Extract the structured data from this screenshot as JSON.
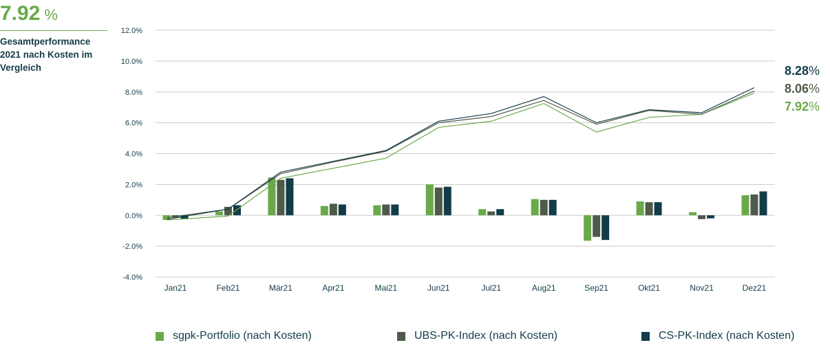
{
  "headline": {
    "value": "7.92",
    "unit": "%",
    "subtitle_lines": [
      "Gesamtperformance",
      "2021 nach Kosten im",
      "Vergleich"
    ]
  },
  "end_labels": [
    {
      "value": "8.28",
      "unit": "%",
      "color": "#123c48"
    },
    {
      "value": "8.06",
      "unit": "%",
      "color": "#4e5a4a"
    },
    {
      "value": "7.92",
      "unit": "%",
      "color": "#6aa94a"
    }
  ],
  "colors": {
    "sgpk": "#6aa94a",
    "ubs": "#4e5a4a",
    "cs": "#123c48",
    "grid": "#c8cbc8",
    "axis_text": "#123c48"
  },
  "chart_data": {
    "type": "bar",
    "categories": [
      "Jan21",
      "Feb21",
      "Mär21",
      "Apr21",
      "Mai21",
      "Jun21",
      "Jul21",
      "Aug21",
      "Sep21",
      "Okt21",
      "Nov21",
      "Dez21"
    ],
    "ylim": [
      -4.0,
      12.0
    ],
    "yticks": [
      "12.0%",
      "10.0%",
      "8.0%",
      "6.0%",
      "4.0%",
      "2.0%",
      "0.0%",
      "-2.0%",
      "-4.0%"
    ],
    "ytick_values": [
      12,
      10,
      8,
      6,
      4,
      2,
      0,
      -2,
      -4
    ],
    "grid": true,
    "legend_position": "bottom",
    "series": [
      {
        "name": "sgpk-Portfolio (nach Kosten)",
        "key": "sgpk",
        "monthly": [
          -0.3,
          0.25,
          2.45,
          0.6,
          0.65,
          2.0,
          0.4,
          1.05,
          -1.65,
          0.9,
          0.2,
          1.3
        ],
        "cumulative": [
          -0.3,
          -0.05,
          2.4,
          3.05,
          3.7,
          5.7,
          6.1,
          7.25,
          5.4,
          6.35,
          6.55,
          7.92
        ]
      },
      {
        "name": "UBS-PK-Index (nach Kosten)",
        "key": "ubs",
        "monthly": [
          -0.15,
          0.55,
          2.3,
          0.75,
          0.7,
          1.8,
          0.25,
          1.0,
          -1.4,
          0.85,
          -0.25,
          1.35
        ],
        "cumulative": [
          -0.15,
          0.4,
          2.7,
          3.45,
          4.15,
          6.0,
          6.4,
          7.45,
          5.9,
          6.8,
          6.55,
          8.06
        ]
      },
      {
        "name": "CS-PK-Index (nach Kosten)",
        "key": "cs",
        "monthly": [
          -0.25,
          0.65,
          2.4,
          0.7,
          0.7,
          1.85,
          0.4,
          1.0,
          -1.6,
          0.85,
          -0.2,
          1.55
        ],
        "cumulative": [
          -0.25,
          0.4,
          2.8,
          3.5,
          4.2,
          6.1,
          6.6,
          7.7,
          6.0,
          6.85,
          6.65,
          8.28
        ]
      }
    ]
  }
}
